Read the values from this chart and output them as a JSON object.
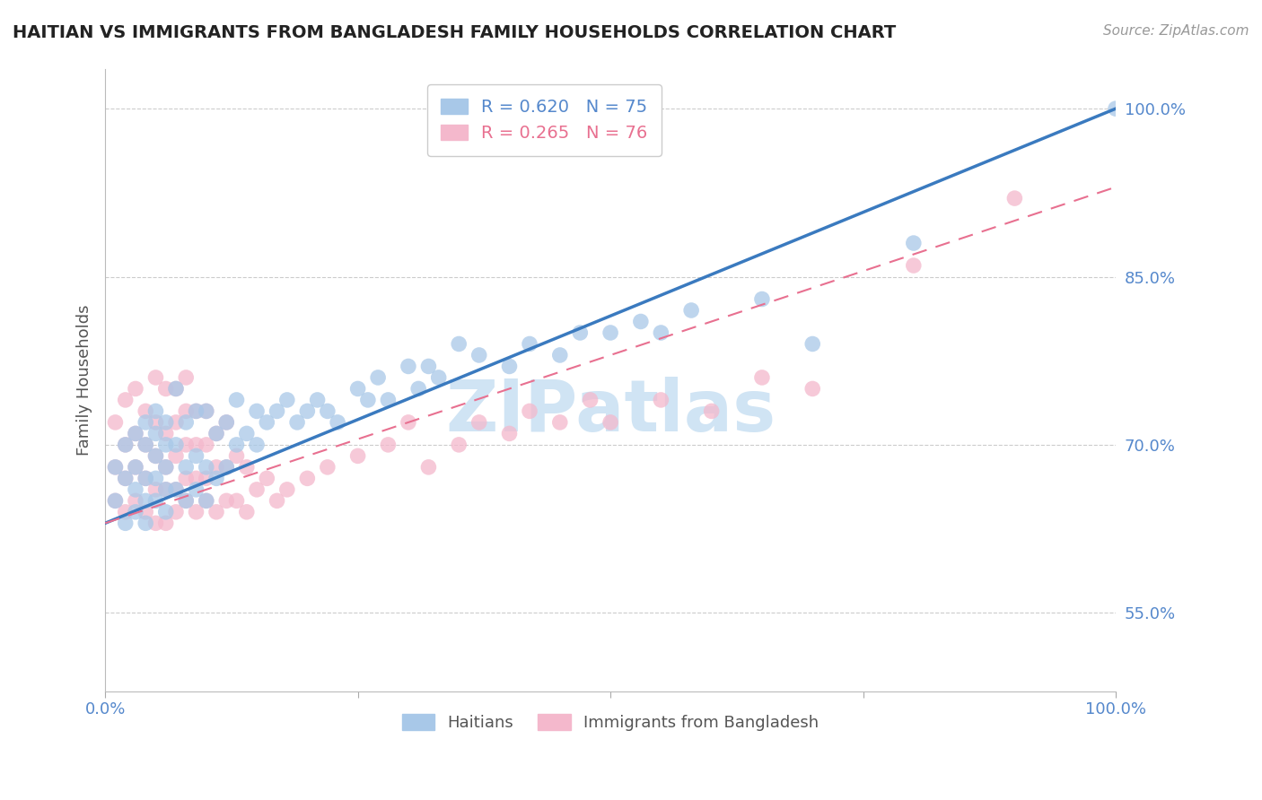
{
  "title": "HAITIAN VS IMMIGRANTS FROM BANGLADESH FAMILY HOUSEHOLDS CORRELATION CHART",
  "source": "Source: ZipAtlas.com",
  "ylabel": "Family Households",
  "yticks": [
    55.0,
    70.0,
    85.0,
    100.0
  ],
  "ytick_labels": [
    "55.0%",
    "70.0%",
    "85.0%",
    "100.0%"
  ],
  "xmin": 0.0,
  "xmax": 100.0,
  "ymin": 48.0,
  "ymax": 103.5,
  "blue_R": 0.62,
  "blue_N": 75,
  "pink_R": 0.265,
  "pink_N": 76,
  "blue_color": "#a8c8e8",
  "pink_color": "#f4b8cc",
  "blue_line_color": "#3a7abf",
  "pink_line_color": "#e87090",
  "grid_color": "#cccccc",
  "title_color": "#222222",
  "axis_label_color": "#5588cc",
  "watermark_color": "#d0e4f4",
  "legend_blue_text_color": "#5588cc",
  "legend_pink_text_color": "#e87090",
  "blue_line_x0": 0.0,
  "blue_line_y0": 63.0,
  "blue_line_x1": 100.0,
  "blue_line_y1": 100.0,
  "pink_line_x0": 0.0,
  "pink_line_y0": 63.0,
  "pink_line_x1": 100.0,
  "pink_line_y1": 93.0,
  "blue_scatter_x": [
    1,
    1,
    2,
    2,
    2,
    3,
    3,
    3,
    3,
    4,
    4,
    4,
    4,
    4,
    5,
    5,
    5,
    5,
    5,
    6,
    6,
    6,
    6,
    6,
    7,
    7,
    7,
    8,
    8,
    8,
    9,
    9,
    9,
    10,
    10,
    10,
    11,
    11,
    12,
    12,
    13,
    13,
    14,
    15,
    15,
    16,
    17,
    18,
    19,
    20,
    21,
    22,
    23,
    25,
    26,
    27,
    28,
    30,
    31,
    32,
    33,
    35,
    37,
    40,
    42,
    45,
    47,
    50,
    53,
    55,
    58,
    65,
    70,
    80,
    100
  ],
  "blue_scatter_y": [
    65,
    68,
    63,
    67,
    70,
    64,
    66,
    68,
    71,
    63,
    65,
    67,
    70,
    72,
    65,
    67,
    69,
    71,
    73,
    64,
    66,
    68,
    70,
    72,
    66,
    70,
    75,
    65,
    68,
    72,
    66,
    69,
    73,
    65,
    68,
    73,
    67,
    71,
    68,
    72,
    70,
    74,
    71,
    70,
    73,
    72,
    73,
    74,
    72,
    73,
    74,
    73,
    72,
    75,
    74,
    76,
    74,
    77,
    75,
    77,
    76,
    79,
    78,
    77,
    79,
    78,
    80,
    80,
    81,
    80,
    82,
    83,
    79,
    88,
    100
  ],
  "pink_scatter_x": [
    1,
    1,
    1,
    2,
    2,
    2,
    2,
    3,
    3,
    3,
    3,
    4,
    4,
    4,
    4,
    5,
    5,
    5,
    5,
    5,
    6,
    6,
    6,
    6,
    6,
    7,
    7,
    7,
    7,
    7,
    8,
    8,
    8,
    8,
    8,
    9,
    9,
    9,
    9,
    10,
    10,
    10,
    10,
    11,
    11,
    11,
    12,
    12,
    12,
    13,
    13,
    14,
    14,
    15,
    16,
    17,
    18,
    20,
    22,
    25,
    28,
    30,
    32,
    35,
    37,
    40,
    42,
    45,
    48,
    50,
    55,
    60,
    65,
    70,
    80,
    90
  ],
  "pink_scatter_y": [
    65,
    68,
    72,
    64,
    67,
    70,
    74,
    65,
    68,
    71,
    75,
    64,
    67,
    70,
    73,
    63,
    66,
    69,
    72,
    76,
    63,
    66,
    68,
    71,
    75,
    64,
    66,
    69,
    72,
    75,
    65,
    67,
    70,
    73,
    76,
    64,
    67,
    70,
    73,
    65,
    67,
    70,
    73,
    64,
    68,
    71,
    65,
    68,
    72,
    65,
    69,
    64,
    68,
    66,
    67,
    65,
    66,
    67,
    68,
    69,
    70,
    72,
    68,
    70,
    72,
    71,
    73,
    72,
    74,
    72,
    74,
    73,
    76,
    75,
    86,
    92
  ],
  "watermark_zip": "ZIP",
  "watermark_atlas": "atlas"
}
